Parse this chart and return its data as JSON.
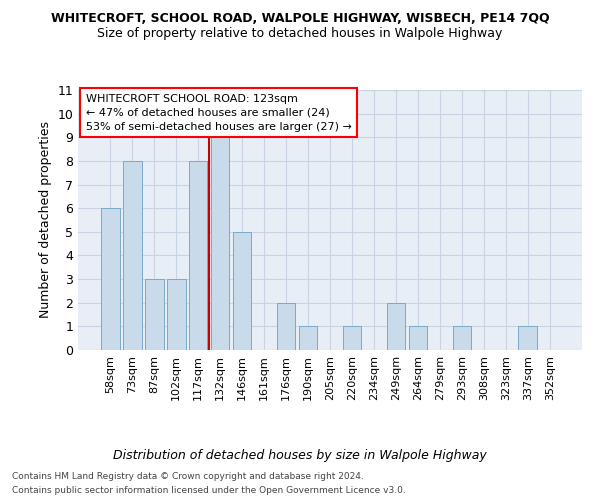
{
  "title": "WHITECROFT, SCHOOL ROAD, WALPOLE HIGHWAY, WISBECH, PE14 7QQ",
  "subtitle": "Size of property relative to detached houses in Walpole Highway",
  "xlabel": "Distribution of detached houses by size in Walpole Highway",
  "ylabel": "Number of detached properties",
  "categories": [
    "58sqm",
    "73sqm",
    "87sqm",
    "102sqm",
    "117sqm",
    "132sqm",
    "146sqm",
    "161sqm",
    "176sqm",
    "190sqm",
    "205sqm",
    "220sqm",
    "234sqm",
    "249sqm",
    "264sqm",
    "279sqm",
    "293sqm",
    "308sqm",
    "323sqm",
    "337sqm",
    "352sqm"
  ],
  "values": [
    6,
    8,
    3,
    3,
    8,
    9,
    5,
    0,
    2,
    1,
    0,
    1,
    0,
    2,
    1,
    0,
    1,
    0,
    0,
    1,
    0
  ],
  "bar_color": "#c9daea",
  "bar_edge_color": "#7aaac8",
  "grid_color": "#c8d4e4",
  "background_color": "#e8eef6",
  "annotation_line1": "WHITECROFT SCHOOL ROAD: 123sqm",
  "annotation_line2": "← 47% of detached houses are smaller (24)",
  "annotation_line3": "53% of semi-detached houses are larger (27) →",
  "red_line_x": 4.5,
  "ylim": [
    0,
    11
  ],
  "yticks": [
    0,
    1,
    2,
    3,
    4,
    5,
    6,
    7,
    8,
    9,
    10,
    11
  ],
  "footer_line1": "Contains HM Land Registry data © Crown copyright and database right 2024.",
  "footer_line2": "Contains public sector information licensed under the Open Government Licence v3.0."
}
